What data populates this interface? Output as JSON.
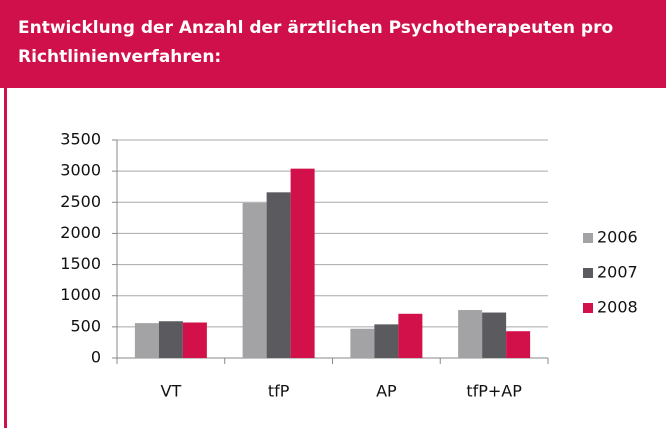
{
  "chart_data": {
    "type": "bar",
    "title": "Entwicklung der Anzahl der ärztlichen Psychotherapeuten pro Richtlinienverfahren:",
    "categories": [
      "VT",
      "tfP",
      "AP",
      "tfP+AP"
    ],
    "series": [
      {
        "name": "2006",
        "color": "#a3a3a5",
        "values": [
          560,
          2490,
          470,
          770
        ]
      },
      {
        "name": "2007",
        "color": "#5b5b5f",
        "values": [
          590,
          2660,
          540,
          730
        ]
      },
      {
        "name": "2008",
        "color": "#d2104a",
        "values": [
          570,
          3040,
          710,
          430
        ]
      }
    ],
    "ylim": [
      0,
      3500
    ],
    "yticks": [
      0,
      500,
      1000,
      1500,
      2000,
      2500,
      3000,
      3500
    ],
    "grid": true,
    "legend": "right"
  }
}
